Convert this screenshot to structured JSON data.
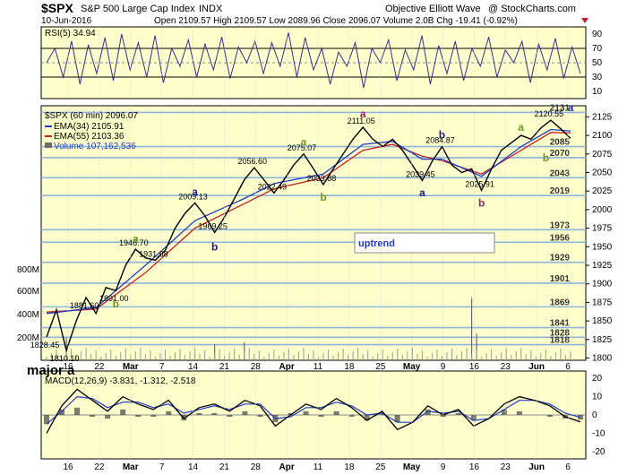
{
  "header": {
    "symbol": "$SPX",
    "name": "S&P 500 Large Cap Index",
    "exchange": "INDX",
    "source": "Objective Elliott Wave",
    "copyright": "@ StockCharts.com",
    "date": "10-Jun-2016",
    "ohlc": "Open 2109.57  High 2109.57  Low 2089.96  Close 2096.07  Volume 2.0B  Chg -19.41 (-0.92%)"
  },
  "rsi": {
    "label": "RSI(5) 34.94",
    "ticks": [
      10,
      30,
      50,
      70,
      90
    ],
    "overbought": 70,
    "oversold": 30
  },
  "price_legend": {
    "title": "$SPX (60 min) 2096.07",
    "ema34": "EMA(34) 2105.91",
    "ema55": "EMA(55) 2103.36",
    "volume": "Volume 107,162,536"
  },
  "colors": {
    "price": "#000000",
    "ema34": "#1e3cc8",
    "ema55": "#c81e1e",
    "volume": "#6b6b6b",
    "background": "#ffffcc",
    "level_lines": "#8cb4dc",
    "rsi_line": "#3a2d8f",
    "macd_line": "#000000",
    "signal_line": "#1e3cc8",
    "histogram": "#444444",
    "uptrend_box_text": "#1e3cc8"
  },
  "chart_data": {
    "type": "line",
    "title": "$SPX S&P 500 Large Cap Index INDX (60 min)",
    "x_ticks": [
      "16",
      "22",
      "Mar",
      "7",
      "14",
      "21",
      "28",
      "Apr",
      "11",
      "18",
      "25",
      "May",
      "9",
      "16",
      "23",
      "Jun",
      "6"
    ],
    "y_ticks": [
      1800,
      1825,
      1850,
      1875,
      1900,
      1925,
      1950,
      1975,
      2000,
      2025,
      2050,
      2075,
      2100,
      2125
    ],
    "volume_ticks": [
      "200M",
      "400M",
      "600M",
      "800M"
    ],
    "ylim": [
      1797,
      2140
    ],
    "price_path": [
      [
        0,
        1828.45
      ],
      [
        2,
        1865
      ],
      [
        4,
        1810.1
      ],
      [
        6,
        1850
      ],
      [
        8,
        1881.6
      ],
      [
        10,
        1860
      ],
      [
        12,
        1895
      ],
      [
        14,
        1891
      ],
      [
        16,
        1925
      ],
      [
        18,
        1946.7
      ],
      [
        20,
        1935
      ],
      [
        22,
        1931.88
      ],
      [
        24,
        1945
      ],
      [
        26,
        1975
      ],
      [
        28,
        1995
      ],
      [
        30,
        2009.13
      ],
      [
        32,
        1992
      ],
      [
        34,
        1969.25
      ],
      [
        36,
        1990
      ],
      [
        38,
        2015
      ],
      [
        40,
        2040
      ],
      [
        42,
        2056.6
      ],
      [
        44,
        2040
      ],
      [
        46,
        2022.49
      ],
      [
        48,
        2040
      ],
      [
        50,
        2060
      ],
      [
        52,
        2075.07
      ],
      [
        54,
        2055
      ],
      [
        56,
        2033.88
      ],
      [
        58,
        2055
      ],
      [
        60,
        2075
      ],
      [
        62,
        2095
      ],
      [
        64,
        2111.05
      ],
      [
        66,
        2095
      ],
      [
        68,
        2085
      ],
      [
        70,
        2095
      ],
      [
        72,
        2080
      ],
      [
        74,
        2060
      ],
      [
        76,
        2039.45
      ],
      [
        78,
        2065
      ],
      [
        80,
        2084.87
      ],
      [
        82,
        2060
      ],
      [
        84,
        2050
      ],
      [
        86,
        2055
      ],
      [
        88,
        2025.91
      ],
      [
        90,
        2055
      ],
      [
        92,
        2080
      ],
      [
        94,
        2090
      ],
      [
        96,
        2100
      ],
      [
        98,
        2095
      ],
      [
        100,
        2110
      ],
      [
        102,
        2120.55
      ],
      [
        104,
        2109
      ],
      [
        106,
        2096.07
      ]
    ],
    "ema34_path": [
      [
        0,
        1860
      ],
      [
        10,
        1868
      ],
      [
        20,
        1925
      ],
      [
        30,
        1985
      ],
      [
        40,
        2015
      ],
      [
        46,
        2035
      ],
      [
        56,
        2048
      ],
      [
        64,
        2088
      ],
      [
        70,
        2092
      ],
      [
        76,
        2068
      ],
      [
        80,
        2068
      ],
      [
        88,
        2045
      ],
      [
        96,
        2085
      ],
      [
        102,
        2108
      ],
      [
        106,
        2105.91
      ]
    ],
    "ema55_path": [
      [
        0,
        1862
      ],
      [
        10,
        1866
      ],
      [
        20,
        1915
      ],
      [
        30,
        1975
      ],
      [
        40,
        2008
      ],
      [
        46,
        2028
      ],
      [
        56,
        2043
      ],
      [
        64,
        2080
      ],
      [
        70,
        2088
      ],
      [
        76,
        2072
      ],
      [
        80,
        2066
      ],
      [
        88,
        2048
      ],
      [
        96,
        2080
      ],
      [
        102,
        2104
      ],
      [
        106,
        2103.36
      ]
    ],
    "price_labels": [
      {
        "text": "1828.45",
        "x": 0,
        "y": 1828.45
      },
      {
        "text": "1810.10",
        "x": 4,
        "y": 1810.1
      },
      {
        "text": "1881.60",
        "x": 8,
        "y": 1881.6
      },
      {
        "text": "1891.00",
        "x": 14,
        "y": 1891
      },
      {
        "text": "1946.70",
        "x": 18,
        "y": 1946.7
      },
      {
        "text": "1931.88",
        "x": 22,
        "y": 1931.88
      },
      {
        "text": "2009.13",
        "x": 30,
        "y": 2009.13
      },
      {
        "text": "1969.25",
        "x": 34,
        "y": 1969.25
      },
      {
        "text": "2056.60",
        "x": 42,
        "y": 2056.6
      },
      {
        "text": "2022.49",
        "x": 46,
        "y": 2022.49
      },
      {
        "text": "2075.07",
        "x": 52,
        "y": 2075.07
      },
      {
        "text": "2033.88",
        "x": 56,
        "y": 2033.88
      },
      {
        "text": "2111.05",
        "x": 64,
        "y": 2111.05
      },
      {
        "text": "2039.45",
        "x": 76,
        "y": 2039.45
      },
      {
        "text": "2084.87",
        "x": 80,
        "y": 2084.87
      },
      {
        "text": "2025.91",
        "x": 88,
        "y": 2025.91
      },
      {
        "text": "2120.55",
        "x": 102,
        "y": 2120.55
      }
    ],
    "wave_labels": [
      {
        "text": "a",
        "x": 18,
        "y": 1956,
        "color": "#6a9a1e"
      },
      {
        "text": "b",
        "x": 14,
        "y": 1868,
        "color": "#6a9a1e"
      },
      {
        "text": "a",
        "x": 30,
        "y": 2019,
        "color": "#1a1aa0"
      },
      {
        "text": "b",
        "x": 34,
        "y": 1945,
        "color": "#1a1aa0"
      },
      {
        "text": "a",
        "x": 52,
        "y": 2086,
        "color": "#6a9a1e"
      },
      {
        "text": "b",
        "x": 56,
        "y": 2012,
        "color": "#6a9a1e"
      },
      {
        "text": "a",
        "x": 64,
        "y": 2124,
        "color": "#a0206a"
      },
      {
        "text": "a",
        "x": 76,
        "y": 2018,
        "color": "#1a1aa0"
      },
      {
        "text": "b",
        "x": 80,
        "y": 2096,
        "color": "#1a1aa0"
      },
      {
        "text": "b",
        "x": 88,
        "y": 2004,
        "color": "#a0206a"
      },
      {
        "text": "a",
        "x": 96,
        "y": 2106,
        "color": "#6a9a1e"
      },
      {
        "text": "b",
        "x": 101,
        "y": 2065,
        "color": "#6a9a1e"
      },
      {
        "text": "a",
        "x": 106,
        "y": 2133,
        "color": "#1a1aa0"
      }
    ],
    "level_lines": [
      2131,
      2085,
      2070,
      2043,
      2019,
      1973,
      1956,
      1929,
      1901,
      1869,
      1841,
      1828,
      1818
    ],
    "volume_spikes": [
      [
        4,
        0.25
      ],
      [
        34,
        0.18
      ],
      [
        40,
        0.2
      ],
      [
        86,
        0.7
      ],
      [
        87,
        0.3
      ]
    ],
    "uptrend_label": "uptrend",
    "major_label": "major a"
  },
  "rsi_data": {
    "values": [
      50,
      70,
      30,
      80,
      20,
      75,
      35,
      85,
      25,
      90,
      40,
      78,
      30,
      88,
      22,
      70,
      45,
      82,
      30,
      76,
      40,
      86,
      28,
      72,
      50,
      80,
      35,
      78,
      45,
      92,
      30,
      85,
      40,
      70,
      20,
      65,
      45,
      78,
      15,
      70,
      50,
      82,
      25,
      68,
      40,
      88,
      20,
      74,
      35,
      80,
      25,
      70,
      45,
      86,
      30,
      68,
      50,
      80,
      22,
      76,
      40,
      84,
      28,
      72,
      34.94
    ]
  },
  "macd": {
    "label": "MACD(12,26,9) -3.831, -1.312, -2.518",
    "ticks": [
      -20,
      -10,
      0,
      10,
      20
    ],
    "macd_values": [
      -10,
      5,
      14,
      8,
      2,
      10,
      6,
      3,
      8,
      -2,
      4,
      6,
      2,
      8,
      5,
      -6,
      0,
      6,
      3,
      9,
      4,
      -3,
      2,
      -8,
      -4,
      5,
      0,
      3,
      -6,
      -2,
      6,
      10,
      8,
      5,
      -1,
      -3.831
    ],
    "signal_values": [
      -5,
      2,
      10,
      9,
      4,
      7,
      7,
      4,
      6,
      1,
      3,
      5,
      3,
      6,
      6,
      -2,
      -1,
      4,
      4,
      7,
      5,
      0,
      1,
      -4,
      -4,
      2,
      1,
      2,
      -3,
      -2,
      3,
      8,
      8,
      6,
      1,
      -1.312
    ]
  }
}
